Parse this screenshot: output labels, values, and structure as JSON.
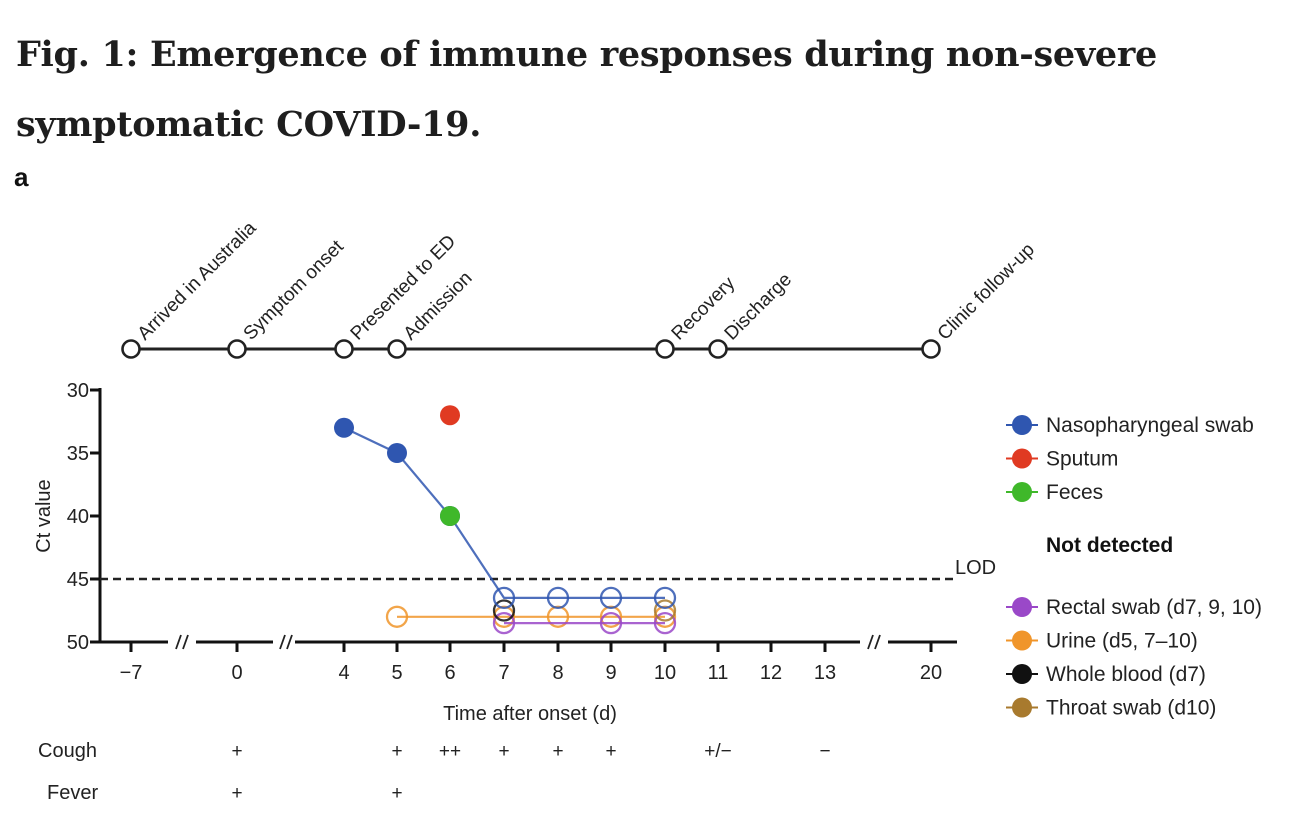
{
  "figure": {
    "title": "Fig. 1: Emergence of immune responses during non-severe symptomatic COVID-19.",
    "panel": "a"
  },
  "chart_data": {
    "type": "line",
    "title": "",
    "xlabel": "Time after onset (d)",
    "ylabel": "Ct value",
    "ylim": [
      50,
      30
    ],
    "y_inverted": true,
    "yticks": [
      30,
      35,
      40,
      45,
      50
    ],
    "xticks": [
      -7,
      0,
      4,
      5,
      6,
      7,
      8,
      9,
      10,
      11,
      12,
      13,
      20
    ],
    "x_axis_breaks": [
      "between -7 and 0",
      "between 0 and 4",
      "between 13 and 20"
    ],
    "reference_line": {
      "label": "LOD",
      "y": 45,
      "style": "dashed"
    },
    "timeline_events": [
      {
        "label": "Arrived in Australia",
        "day": -7
      },
      {
        "label": "Symptom onset",
        "day": 0
      },
      {
        "label": "Presented to ED",
        "day": 4
      },
      {
        "label": "Admission",
        "day": 5
      },
      {
        "label": "Recovery",
        "day": 10
      },
      {
        "label": "Discharge",
        "day": 11
      },
      {
        "label": "Clinic follow-up",
        "day": 20
      }
    ],
    "series": [
      {
        "name": "Nasopharyngeal swab",
        "color": "#2f56b0",
        "detected": true,
        "points": [
          {
            "x": 4,
            "y": 33,
            "detected": true
          },
          {
            "x": 5,
            "y": 35,
            "detected": true
          },
          {
            "x": 6,
            "y": 40,
            "detected": true
          },
          {
            "x": 7,
            "y": 46.5,
            "detected": false
          },
          {
            "x": 8,
            "y": 46.5,
            "detected": false
          },
          {
            "x": 9,
            "y": 46.5,
            "detected": false
          },
          {
            "x": 10,
            "y": 46.5,
            "detected": false
          }
        ]
      },
      {
        "name": "Sputum",
        "color": "#e03a22",
        "detected": true,
        "points": [
          {
            "x": 6,
            "y": 32,
            "detected": true
          }
        ]
      },
      {
        "name": "Feces",
        "color": "#3fb82a",
        "detected": true,
        "points": [
          {
            "x": 6,
            "y": 40,
            "detected": true
          }
        ]
      },
      {
        "name": "Rectal swab (d7, 9, 10)",
        "color": "#9a48c8",
        "detected": false,
        "points": [
          {
            "x": 7,
            "y": 48.5,
            "detected": false
          },
          {
            "x": 9,
            "y": 48.5,
            "detected": false
          },
          {
            "x": 10,
            "y": 48.5,
            "detected": false
          }
        ]
      },
      {
        "name": "Urine (d5, 7–10)",
        "color": "#f0952a",
        "detected": false,
        "points": [
          {
            "x": 5,
            "y": 48,
            "detected": false
          },
          {
            "x": 7,
            "y": 48,
            "detected": false
          },
          {
            "x": 8,
            "y": 48,
            "detected": false
          },
          {
            "x": 9,
            "y": 48,
            "detected": false
          },
          {
            "x": 10,
            "y": 48,
            "detected": false
          }
        ]
      },
      {
        "name": "Whole blood (d7)",
        "color": "#111111",
        "detected": false,
        "points": [
          {
            "x": 7,
            "y": 47.5,
            "detected": false
          }
        ]
      },
      {
        "name": "Throat swab (d10)",
        "color": "#a87a2e",
        "detected": false,
        "points": [
          {
            "x": 10,
            "y": 47.5,
            "detected": false
          }
        ]
      }
    ],
    "legend": {
      "placement": "right",
      "detected_items": [
        "Nasopharyngeal swab",
        "Sputum",
        "Feces"
      ],
      "not_detected_header": "Not detected",
      "not_detected_items": [
        "Rectal swab (d7, 9, 10)",
        "Urine (d5, 7–10)",
        "Whole blood (d7)",
        "Throat swab (d10)"
      ]
    },
    "symptoms": [
      {
        "name": "Cough",
        "marks": [
          {
            "day": 0,
            "value": "+"
          },
          {
            "day": 5,
            "value": "+"
          },
          {
            "day": 6,
            "value": "++"
          },
          {
            "day": 7,
            "value": "+"
          },
          {
            "day": 8,
            "value": "+"
          },
          {
            "day": 9,
            "value": "+"
          },
          {
            "day": 11,
            "value": "+/−"
          },
          {
            "day": 13,
            "value": "−"
          }
        ]
      },
      {
        "name": "Fever",
        "marks": [
          {
            "day": 0,
            "value": "+"
          },
          {
            "day": 5,
            "value": "+"
          }
        ]
      }
    ]
  }
}
